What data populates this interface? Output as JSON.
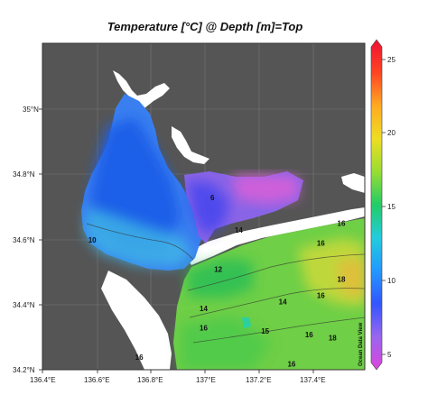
{
  "title": "Temperature [°C] @ Depth [m]=Top",
  "credit": "Ocean Data View",
  "x_axis_ticks": [
    "136.4°E",
    "136.6°E",
    "136.8°E",
    "137°E",
    "137.2°E",
    "137.4°E"
  ],
  "y_axis_ticks": [
    "35°N",
    "34.8°N",
    "34.6°N",
    "34.4°N",
    "34.2°N"
  ],
  "colorbar": {
    "ticks": [
      "25",
      "20",
      "15",
      "10",
      "5"
    ],
    "stops": [
      "#dd44dd",
      "#9966ee",
      "#3355ff",
      "#2299ff",
      "#22ccdd",
      "#22cc66",
      "#99dd33",
      "#eedd22",
      "#ffaa22",
      "#ff4422",
      "#ee1133"
    ],
    "range": [
      4,
      26
    ]
  },
  "colors": {
    "land": "#555555",
    "frame": "#333333",
    "coast": "#ffffff"
  },
  "contour_labels": [
    {
      "text": "10",
      "lon": 136.57,
      "lat": 34.59
    },
    {
      "text": "6",
      "lon": 136.98,
      "lat": 34.72
    },
    {
      "text": "14",
      "lon": 137.07,
      "lat": 34.62
    },
    {
      "text": "12",
      "lon": 137.0,
      "lat": 34.5
    },
    {
      "text": "16",
      "lon": 137.35,
      "lat": 34.58
    },
    {
      "text": "16",
      "lon": 137.35,
      "lat": 34.42
    },
    {
      "text": "16",
      "lon": 137.42,
      "lat": 34.64
    },
    {
      "text": "14",
      "lon": 136.95,
      "lat": 34.38
    },
    {
      "text": "16",
      "lon": 136.95,
      "lat": 34.32
    },
    {
      "text": "14",
      "lon": 137.22,
      "lat": 34.4
    },
    {
      "text": "15",
      "lon": 137.16,
      "lat": 34.31
    },
    {
      "text": "16",
      "lon": 136.73,
      "lat": 34.23
    },
    {
      "text": "16",
      "lon": 137.31,
      "lat": 34.3
    },
    {
      "text": "16",
      "lon": 137.25,
      "lat": 34.21
    },
    {
      "text": "18",
      "lon": 137.42,
      "lat": 34.47
    },
    {
      "text": "18",
      "lon": 137.39,
      "lat": 34.29
    }
  ]
}
